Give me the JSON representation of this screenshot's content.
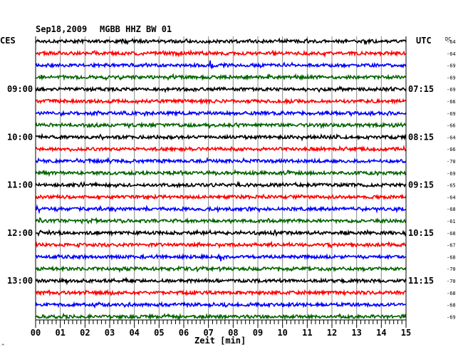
{
  "header": {
    "date": "Sep18,2009",
    "station": "MGBB HHZ BW 01",
    "left_label": "CES",
    "right_label": "UTC",
    "dc_label": "DC"
  },
  "footer": {
    "xlabel": "Zeit [min]",
    "corner_mark": "^"
  },
  "chart_data": {
    "type": "line",
    "title": "Sep18,2009  MGBB HHZ BW 01",
    "xlabel": "Zeit [min]",
    "xlim": [
      0,
      15
    ],
    "x_ticks": [
      "00",
      "01",
      "02",
      "03",
      "04",
      "05",
      "06",
      "07",
      "08",
      "09",
      "10",
      "11",
      "12",
      "13",
      "14",
      "15"
    ],
    "grid": "vertical lines every minute",
    "left_time_labels": [
      "09:00",
      "10:00",
      "11:00",
      "12:00",
      "13:00"
    ],
    "right_time_labels": [
      "07:15",
      "08:15",
      "09:15",
      "10:15",
      "11:15"
    ],
    "trace_colors": [
      "#000000",
      "#ff0000",
      "#0000ff",
      "#006400"
    ],
    "dc_offsets": [
      "-64",
      "-64",
      "-69",
      "-69",
      "-69",
      "-66",
      "-69",
      "-66",
      "-64",
      "-66",
      "-70",
      "-69",
      "-65",
      "-64",
      "-68",
      "-61",
      "-68",
      "-67",
      "-68",
      "-70",
      "-70",
      "-68",
      "-68",
      "-69"
    ],
    "events": [
      {
        "trace": 2,
        "minute": 7.1,
        "strength": 9
      },
      {
        "trace": 8,
        "minute": 5.2,
        "strength": 3
      },
      {
        "trace": 8,
        "minute": 8.5,
        "strength": 4
      },
      {
        "trace": 8,
        "minute": 10.8,
        "strength": 4
      },
      {
        "trace": 9,
        "minute": 10.8,
        "strength": 3
      },
      {
        "trace": 10,
        "minute": 9.8,
        "strength": 3
      },
      {
        "trace": 13,
        "minute": 10.3,
        "strength": 3
      },
      {
        "trace": 14,
        "minute": 0.1,
        "strength": 9
      },
      {
        "trace": 14,
        "minute": 8.6,
        "strength": 6
      },
      {
        "trace": 14,
        "minute": 13.8,
        "strength": 4
      },
      {
        "trace": 15,
        "minute": 0.2,
        "strength": 6
      },
      {
        "trace": 16,
        "minute": 9.7,
        "strength": 5
      },
      {
        "trace": 17,
        "minute": 13.0,
        "strength": 3
      },
      {
        "trace": 18,
        "minute": 7.5,
        "strength": 7
      },
      {
        "trace": 21,
        "minute": 12.5,
        "strength": 3
      },
      {
        "trace": 22,
        "minute": 11.6,
        "strength": 3
      },
      {
        "trace": 23,
        "minute": 2.3,
        "strength": 3
      }
    ]
  }
}
